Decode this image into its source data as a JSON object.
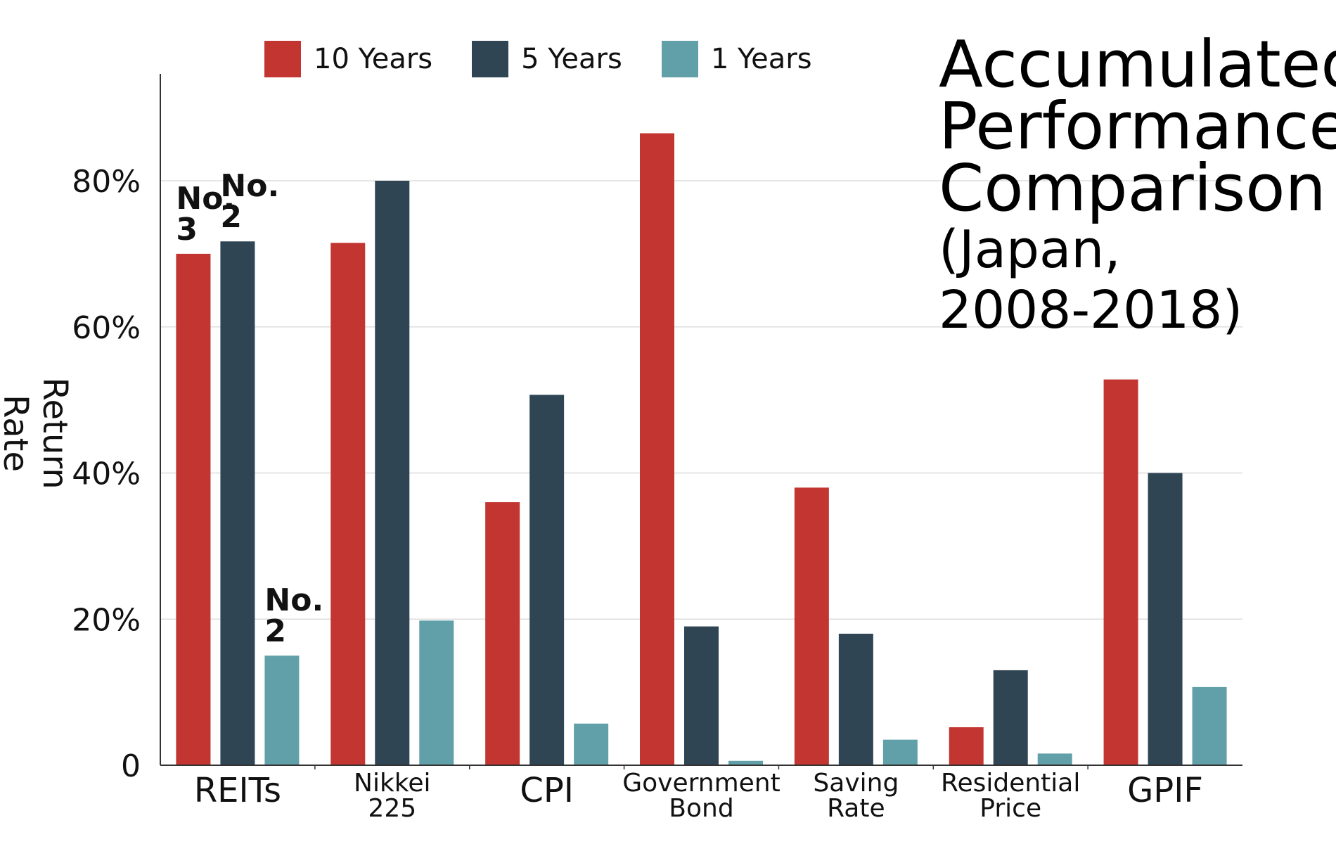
{
  "title_line1": "Accumulated",
  "title_line2": "Performance",
  "title_line3": "Comparison",
  "title_line4": "(Japan,",
  "title_line5": "2008-2018)",
  "colors": {
    "ten": "#c23531",
    "five": "#2f4554",
    "one": "#61a0a8",
    "grid": "#dddddd",
    "axis": "#333333"
  },
  "chart_data": {
    "type": "bar",
    "ylabel": "Return Rate",
    "ylim": [
      0,
      0.92
    ],
    "yticks": [
      {
        "value": 0,
        "label": "0"
      },
      {
        "value": 0.2,
        "label": "20%"
      },
      {
        "value": 0.4,
        "label": "40%"
      },
      {
        "value": 0.6,
        "label": "60%"
      },
      {
        "value": 0.8,
        "label": "80%"
      }
    ],
    "categories": [
      [
        "REITs"
      ],
      [
        "Nikkei",
        "225"
      ],
      [
        "CPI"
      ],
      [
        "Government",
        "Bond"
      ],
      [
        "Saving",
        "Rate"
      ],
      [
        "Residential",
        "Price"
      ],
      [
        "GPIF"
      ]
    ],
    "category_large": [
      true,
      false,
      true,
      false,
      false,
      false,
      true
    ],
    "series": [
      {
        "name": "10 Years",
        "color_key": "ten",
        "values": [
          0.7,
          0.715,
          0.36,
          0.865,
          0.38,
          0.052,
          0.528
        ]
      },
      {
        "name": "5 Years",
        "color_key": "five",
        "values": [
          0.717,
          0.8,
          0.507,
          0.19,
          0.18,
          0.13,
          0.4
        ]
      },
      {
        "name": "1 Years",
        "color_key": "one",
        "values": [
          0.15,
          0.198,
          0.057,
          0.006,
          0.035,
          0.016,
          0.107
        ]
      }
    ],
    "annotations": [
      {
        "category": 0,
        "series": 0,
        "lines": [
          "No.",
          "3"
        ]
      },
      {
        "category": 0,
        "series": 1,
        "lines": [
          "No.",
          "2"
        ]
      },
      {
        "category": 0,
        "series": 2,
        "lines": [
          "No.",
          "2"
        ]
      }
    ],
    "grid": true,
    "legend": "top"
  }
}
